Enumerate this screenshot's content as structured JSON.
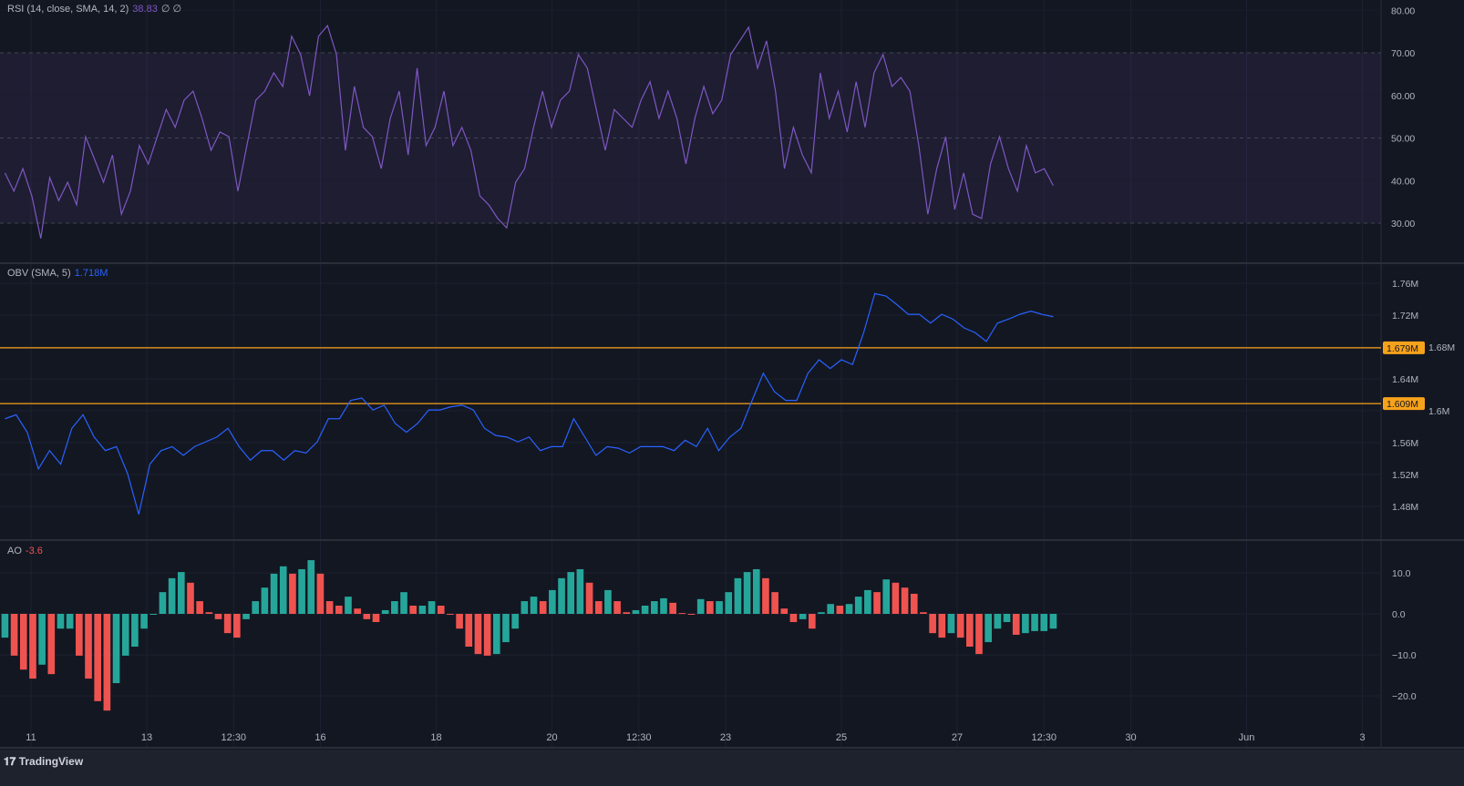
{
  "colors": {
    "background": "#131722",
    "grid": "#1c2030",
    "rsi": "#7e57c2",
    "obv": "#2962ff",
    "level": "#f7a21b",
    "ao_up": "#26a69a",
    "ao_down": "#ef5350",
    "text": "#b2b5be"
  },
  "footer": {
    "brand": "TradingView",
    "logo_icon": "tradingview-logo-icon"
  },
  "x_axis": {
    "ticks": [
      {
        "label": "11",
        "d": 11
      },
      {
        "label": "13",
        "d": 13
      },
      {
        "label": "12:30",
        "d": 14.5
      },
      {
        "label": "16",
        "d": 16
      },
      {
        "label": "18",
        "d": 18
      },
      {
        "label": "20",
        "d": 20
      },
      {
        "label": "12:30",
        "d": 21.5
      },
      {
        "label": "23",
        "d": 23
      },
      {
        "label": "25",
        "d": 25
      },
      {
        "label": "27",
        "d": 27
      },
      {
        "label": "12:30",
        "d": 28.5
      },
      {
        "label": "30",
        "d": 30
      },
      {
        "label": "Jun",
        "d": 32
      },
      {
        "label": "3",
        "d": 34
      }
    ]
  },
  "chart_data": [
    {
      "type": "line",
      "title": "RSI (14, close, SMA, 14, 2)",
      "value_label": "38.83",
      "extra": "∅  ∅",
      "x_start": 10.55,
      "x_end": 28.66,
      "ylim": [
        23,
        82
      ],
      "yticks": [
        "80.00",
        "70.00",
        "60.00",
        "50.00",
        "40.00",
        "30.00"
      ],
      "band": [
        30,
        70
      ],
      "dashed_levels": [
        70,
        50,
        30
      ],
      "values": [
        41.8,
        37.5,
        42.8,
        36.4,
        26.4,
        40.7,
        35.3,
        39.6,
        34.3,
        50.3,
        45,
        39.6,
        46,
        32.1,
        37.5,
        48.2,
        43.9,
        50.3,
        56.7,
        52.5,
        58.9,
        61,
        54.6,
        47.1,
        51.4,
        50.3,
        37.5,
        48.2,
        58.9,
        61,
        65.3,
        62.1,
        73.9,
        69.6,
        59.9,
        73.9,
        76.4,
        69.6,
        47.1,
        62.1,
        52.5,
        50.3,
        42.8,
        54.6,
        61,
        46,
        66.4,
        48.2,
        52.5,
        61,
        48.2,
        52.5,
        47.1,
        36.4,
        34.3,
        31.1,
        28.9,
        39.6,
        42.8,
        52.5,
        61,
        52.5,
        58.9,
        61,
        69.6,
        66.4,
        56.7,
        47.1,
        56.7,
        54.6,
        52.5,
        58.9,
        63.2,
        54.6,
        61,
        54.6,
        43.9,
        54.6,
        62.1,
        55.7,
        58.9,
        69.6,
        72.8,
        76,
        66.4,
        72.8,
        61,
        42.8,
        52.5,
        46,
        41.8,
        65.3,
        54.6,
        61,
        51.4,
        63.2,
        52.5,
        65.3,
        69.6,
        62.1,
        64.2,
        61,
        48.2,
        32.1,
        42.8,
        50.3,
        33.2,
        41.8,
        32.1,
        31.1,
        43.9,
        50.3,
        42.8,
        37.5,
        48.2,
        41.8,
        42.8,
        38.83
      ]
    },
    {
      "type": "line",
      "title": "OBV (SMA, 5)",
      "value_label": "1.718M",
      "x_start": 10.55,
      "x_end": 28.66,
      "ylim": [
        1.45,
        1.79
      ],
      "yticks": [
        {
          "label": "1.76M",
          "v": 1.76
        },
        {
          "label": "1.72M",
          "v": 1.72
        },
        {
          "label": "1.68M",
          "v": 1.68
        },
        {
          "label": "1.64M",
          "v": 1.64
        },
        {
          "label": "1.6M",
          "v": 1.6
        },
        {
          "label": "1.56M",
          "v": 1.56
        },
        {
          "label": "1.52M",
          "v": 1.52
        },
        {
          "label": "1.48M",
          "v": 1.48
        }
      ],
      "horizontal_lines": [
        {
          "v": 1.679,
          "label": "1.679M"
        },
        {
          "v": 1.609,
          "label": "1.609M"
        }
      ],
      "values": [
        1.59,
        1.595,
        1.573,
        1.527,
        1.55,
        1.533,
        1.578,
        1.595,
        1.567,
        1.55,
        1.555,
        1.521,
        1.47,
        1.533,
        1.55,
        1.555,
        1.544,
        1.555,
        1.561,
        1.567,
        1.578,
        1.555,
        1.538,
        1.55,
        1.55,
        1.538,
        1.55,
        1.547,
        1.561,
        1.59,
        1.59,
        1.613,
        1.616,
        1.601,
        1.607,
        1.584,
        1.573,
        1.584,
        1.601,
        1.601,
        1.605,
        1.607,
        1.601,
        1.578,
        1.569,
        1.567,
        1.561,
        1.567,
        1.55,
        1.555,
        1.555,
        1.59,
        1.567,
        1.544,
        1.555,
        1.553,
        1.547,
        1.555,
        1.555,
        1.555,
        1.55,
        1.563,
        1.555,
        1.578,
        1.55,
        1.567,
        1.578,
        1.613,
        1.647,
        1.624,
        1.613,
        1.613,
        1.647,
        1.664,
        1.653,
        1.664,
        1.658,
        1.698,
        1.747,
        1.744,
        1.733,
        1.721,
        1.721,
        1.71,
        1.721,
        1.715,
        1.704,
        1.698,
        1.687,
        1.71,
        1.715,
        1.721,
        1.725,
        1.721,
        1.718
      ]
    },
    {
      "type": "bar",
      "title": "AO",
      "value_label": "-3.6",
      "x_start": 10.55,
      "x_end": 28.66,
      "ylim": [
        -25,
        15
      ],
      "yticks": [
        {
          "label": "10.0",
          "v": 10
        },
        {
          "label": "0.0",
          "v": 0
        },
        {
          "label": "−10.0",
          "v": -10
        },
        {
          "label": "−20.0",
          "v": -20
        }
      ],
      "values": [
        -5.8,
        -10.2,
        -13.6,
        -15.8,
        -12.4,
        -14.7,
        -3.6,
        -3.6,
        -10.2,
        -15.8,
        -21.3,
        -23.6,
        -16.9,
        -10.2,
        -8,
        -3.6,
        -0.2,
        5.3,
        8.7,
        10.2,
        7.6,
        3.1,
        0.4,
        -1.3,
        -4.7,
        -5.8,
        -1.3,
        3.1,
        6.4,
        9.8,
        11.6,
        9.8,
        10.9,
        13.1,
        9.8,
        3.1,
        2,
        4.2,
        1.3,
        -1.3,
        -2,
        0.9,
        3.1,
        5.3,
        2,
        2,
        3.1,
        2,
        -0.2,
        -3.6,
        -8,
        -9.8,
        -10.2,
        -9.8,
        -6.9,
        -3.6,
        3.1,
        4.2,
        3.1,
        5.8,
        8.7,
        10.2,
        10.9,
        7.6,
        3.1,
        5.8,
        3.1,
        0.4,
        0.9,
        2,
        3.1,
        3.8,
        2.7,
        0.2,
        -0.2,
        3.6,
        3.1,
        3.1,
        5.3,
        8.7,
        10.2,
        10.9,
        8.7,
        5.3,
        1.3,
        -2,
        -1.3,
        -3.6,
        0.4,
        2.4,
        2,
        2.4,
        4.2,
        5.8,
        5.3,
        8.4,
        7.6,
        6.4,
        4.9,
        0.4,
        -4.7,
        -5.8,
        -4.7,
        -5.8,
        -8,
        -9.8,
        -6.9,
        -3.6,
        -2,
        -5.1,
        -4.7,
        -4.2,
        -4.2,
        -3.6
      ]
    }
  ]
}
